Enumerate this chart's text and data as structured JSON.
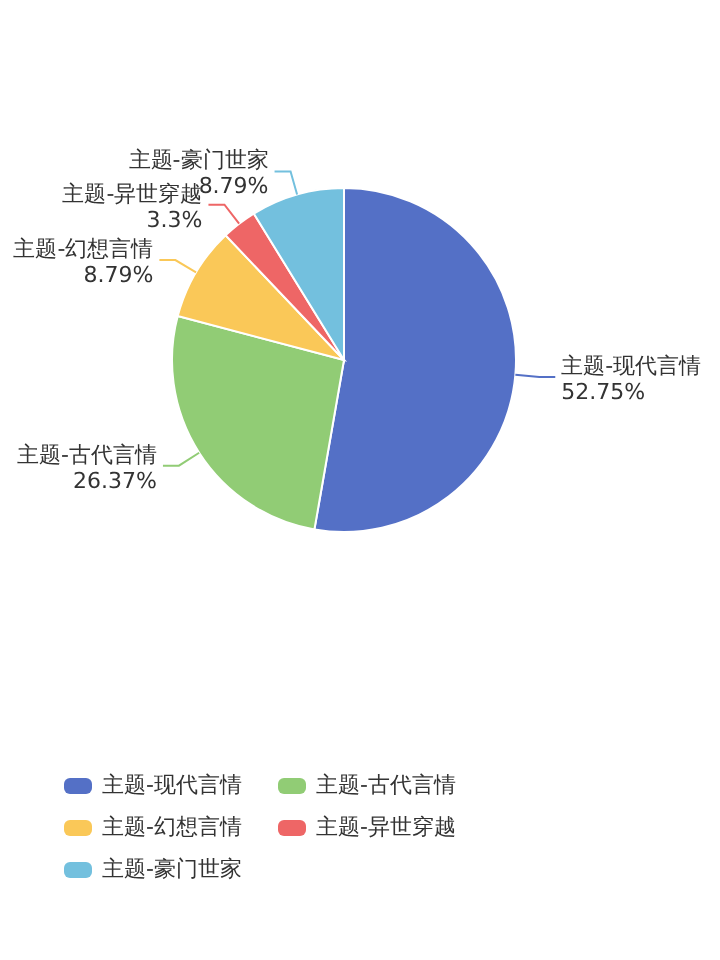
{
  "chart_data": {
    "type": "pie",
    "categories": [
      "主题-现代言情",
      "主题-古代言情",
      "主题-幻想言情",
      "主题-异世穿越",
      "主题-豪门世家"
    ],
    "values": [
      52.75,
      26.37,
      8.79,
      3.3,
      8.79
    ],
    "colors": [
      "#5470c6",
      "#91cc75",
      "#fac858",
      "#ee6666",
      "#73c0de"
    ],
    "value_labels": [
      "52.75%",
      "26.37%",
      "8.79%",
      "3.3%",
      "8.79%"
    ],
    "legend": "bottom"
  }
}
